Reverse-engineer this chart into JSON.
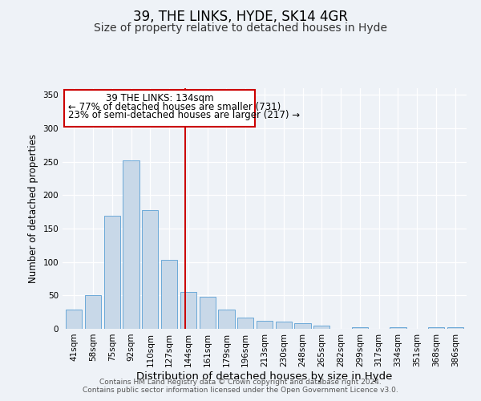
{
  "title": "39, THE LINKS, HYDE, SK14 4GR",
  "subtitle": "Size of property relative to detached houses in Hyde",
  "xlabel": "Distribution of detached houses by size in Hyde",
  "ylabel": "Number of detached properties",
  "categories": [
    "41sqm",
    "58sqm",
    "75sqm",
    "92sqm",
    "110sqm",
    "127sqm",
    "144sqm",
    "161sqm",
    "179sqm",
    "196sqm",
    "213sqm",
    "230sqm",
    "248sqm",
    "265sqm",
    "282sqm",
    "299sqm",
    "317sqm",
    "334sqm",
    "351sqm",
    "368sqm",
    "386sqm"
  ],
  "values": [
    29,
    50,
    169,
    252,
    178,
    103,
    55,
    48,
    29,
    17,
    12,
    11,
    8,
    5,
    0,
    2,
    0,
    2,
    0,
    2,
    2
  ],
  "bar_color": "#c8d8e8",
  "bar_edge_color": "#5a9fd4",
  "vline_x": 5.85,
  "vline_color": "#cc0000",
  "annotation_line1": "39 THE LINKS: 134sqm",
  "annotation_line2": "← 77% of detached houses are smaller (731)",
  "annotation_line3": "23% of semi-detached houses are larger (217) →",
  "annotation_box_color": "#cc0000",
  "ylim": [
    0,
    360
  ],
  "yticks": [
    0,
    50,
    100,
    150,
    200,
    250,
    300,
    350
  ],
  "background_color": "#eef2f7",
  "footer1": "Contains HM Land Registry data © Crown copyright and database right 2024.",
  "footer2": "Contains public sector information licensed under the Open Government Licence v3.0.",
  "title_fontsize": 12,
  "subtitle_fontsize": 10,
  "xlabel_fontsize": 9.5,
  "ylabel_fontsize": 8.5,
  "tick_fontsize": 7.5,
  "annotation_fontsize": 8.5,
  "footer_fontsize": 6.5
}
